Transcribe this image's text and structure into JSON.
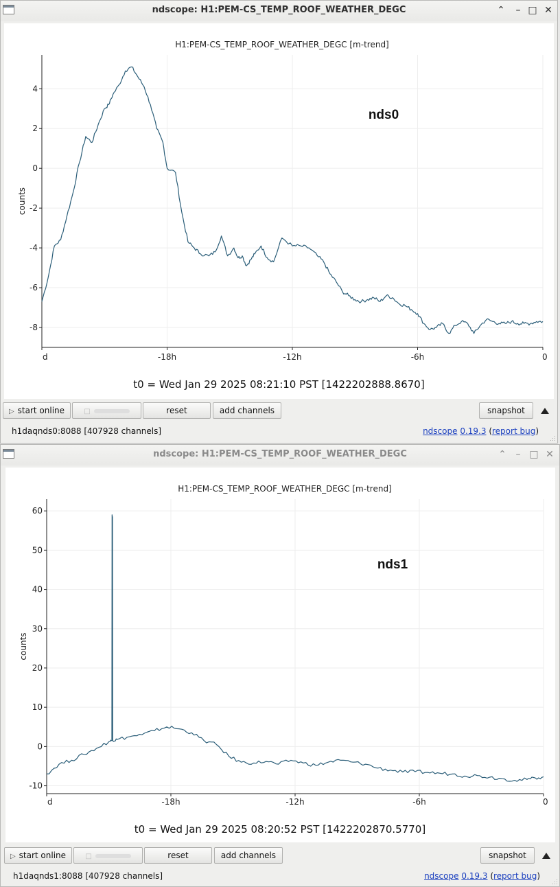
{
  "colors": {
    "trace": "#2a5d78",
    "grid": "#eeeeee",
    "link": "#1a3fbf"
  },
  "windows": [
    {
      "title": "ndscope: H1:PEM-CS_TEMP_ROOF_WEATHER_DEGC",
      "active": true,
      "plot_title": "H1:PEM-CS_TEMP_ROOF_WEATHER_DEGC [m-trend]",
      "annotation": "nds0",
      "t0": "t0 = Wed Jan 29 2025 08:21:10 PST [1422202888.8670]",
      "buttons": {
        "start_online": "start online",
        "reset": "reset",
        "add_channels": "add channels",
        "snapshot": "snapshot"
      },
      "status_server": "h1daqnds0:8088  [407928 channels]",
      "link_ndscope": "ndscope",
      "link_version": "0.19.3",
      "link_report": "report bug"
    },
    {
      "title": "ndscope: H1:PEM-CS_TEMP_ROOF_WEATHER_DEGC",
      "active": false,
      "plot_title": "H1:PEM-CS_TEMP_ROOF_WEATHER_DEGC [m-trend]",
      "annotation": "nds1",
      "t0": "t0 = Wed Jan 29 2025 08:20:52 PST [1422202870.5770]",
      "buttons": {
        "start_online": "start online",
        "reset": "reset",
        "add_channels": "add channels",
        "snapshot": "snapshot"
      },
      "status_server": "h1daqnds1:8088  [407928 channels]",
      "link_ndscope": "ndscope",
      "link_version": "0.19.3",
      "link_report": "report bug"
    }
  ],
  "chart_data": [
    {
      "type": "line",
      "title": "H1:PEM-CS_TEMP_ROOF_WEATHER_DEGC [m-trend]",
      "ylabel": "counts",
      "xlabel": "",
      "x_tick_labels": [
        "d",
        "-18h",
        "-12h",
        "-6h",
        "0"
      ],
      "x_tick_values": [
        -24,
        -18,
        -12,
        -6,
        0
      ],
      "y_ticks": [
        -8,
        -6,
        -4,
        -2,
        0,
        2,
        4
      ],
      "xlim": [
        -24,
        0
      ],
      "ylim": [
        -9.0,
        5.7
      ],
      "grid": true,
      "annotation": "nds0",
      "series": [
        {
          "x": [
            -24.0,
            -23.7,
            -23.4,
            -23.1,
            -22.8,
            -22.5,
            -22.2,
            -21.9,
            -21.6,
            -21.3,
            -21.0,
            -20.8,
            -20.6,
            -20.3,
            -20.0,
            -19.7,
            -19.4,
            -19.1,
            -18.8,
            -18.5,
            -18.2,
            -18.0,
            -17.6,
            -17.3,
            -17.0,
            -16.7,
            -16.4,
            -16.0,
            -15.7,
            -15.4,
            -15.1,
            -14.8,
            -14.6,
            -14.4,
            -14.2,
            -14.0,
            -13.8,
            -13.5,
            -13.2,
            -12.9,
            -12.5,
            -12.0,
            -11.6,
            -11.2,
            -10.8,
            -10.5,
            -10.2,
            -9.9,
            -9.6,
            -9.3,
            -9.0,
            -8.7,
            -8.4,
            -8.1,
            -7.8,
            -7.5,
            -7.2,
            -6.9,
            -6.6,
            -6.3,
            -6.0,
            -5.7,
            -5.4,
            -5.1,
            -4.8,
            -4.5,
            -4.2,
            -3.9,
            -3.6,
            -3.3,
            -3.0,
            -2.7,
            -2.4,
            -2.1,
            -1.8,
            -1.5,
            -1.2,
            -0.9,
            -0.6,
            -0.3,
            0.0
          ],
          "y": [
            -6.7,
            -5.5,
            -3.9,
            -3.6,
            -2.4,
            -1.2,
            0.3,
            1.6,
            1.3,
            2.2,
            3.0,
            3.2,
            3.7,
            4.2,
            4.9,
            5.1,
            4.6,
            4.1,
            3.2,
            2.0,
            1.3,
            0.0,
            -0.2,
            -2.2,
            -3.7,
            -4.0,
            -4.3,
            -4.4,
            -4.2,
            -3.4,
            -4.4,
            -4.0,
            -4.5,
            -4.4,
            -4.9,
            -4.6,
            -4.3,
            -3.9,
            -4.5,
            -4.7,
            -3.5,
            -3.9,
            -3.9,
            -4.0,
            -4.4,
            -4.7,
            -5.3,
            -5.7,
            -6.2,
            -6.4,
            -6.6,
            -6.7,
            -6.6,
            -6.5,
            -6.7,
            -6.4,
            -6.5,
            -6.8,
            -6.9,
            -7.1,
            -7.3,
            -7.8,
            -8.1,
            -8.0,
            -7.8,
            -8.3,
            -7.9,
            -7.7,
            -7.8,
            -8.3,
            -7.9,
            -7.6,
            -7.7,
            -7.8,
            -7.8,
            -7.7,
            -7.8,
            -7.8,
            -7.8,
            -7.7,
            -7.7
          ]
        }
      ]
    },
    {
      "type": "line",
      "title": "H1:PEM-CS_TEMP_ROOF_WEATHER_DEGC [m-trend]",
      "ylabel": "counts",
      "xlabel": "",
      "x_tick_labels": [
        "d",
        "-18h",
        "-12h",
        "-6h",
        "0"
      ],
      "x_tick_values": [
        -24,
        -18,
        -12,
        -6,
        0
      ],
      "y_ticks": [
        -10,
        0,
        10,
        20,
        30,
        40,
        50,
        60
      ],
      "xlim": [
        -24,
        0
      ],
      "ylim": [
        -12,
        63
      ],
      "grid": true,
      "annotation": "nds1",
      "series": [
        {
          "x": [
            -24.0,
            -23.4,
            -22.8,
            -22.2,
            -21.6,
            -21.0,
            -20.85,
            -20.84,
            -20.82,
            -20.81,
            -20.6,
            -20.0,
            -19.4,
            -18.8,
            -18.2,
            -17.6,
            -17.0,
            -16.4,
            -15.8,
            -15.2,
            -14.6,
            -14.0,
            -13.4,
            -12.8,
            -12.2,
            -11.6,
            -11.0,
            -10.4,
            -9.8,
            -9.2,
            -8.6,
            -8.0,
            -7.4,
            -6.8,
            -6.2,
            -5.6,
            -5.0,
            -4.4,
            -3.8,
            -3.2,
            -2.6,
            -2.0,
            -1.4,
            -0.8,
            -0.4,
            0.0
          ],
          "y": [
            -7.0,
            -4.5,
            -3.5,
            -2.0,
            -0.5,
            1.2,
            1.5,
            59.0,
            58.5,
            1.5,
            1.8,
            2.5,
            3.0,
            4.0,
            5.0,
            4.5,
            3.5,
            1.5,
            0.5,
            -2.5,
            -4.0,
            -4.2,
            -3.8,
            -4.5,
            -3.5,
            -4.2,
            -4.8,
            -4.0,
            -3.5,
            -4.0,
            -4.5,
            -5.5,
            -6.0,
            -6.5,
            -6.4,
            -6.6,
            -6.8,
            -7.0,
            -7.5,
            -7.4,
            -7.8,
            -8.2,
            -8.6,
            -8.4,
            -8.0,
            -7.7
          ]
        }
      ]
    }
  ]
}
